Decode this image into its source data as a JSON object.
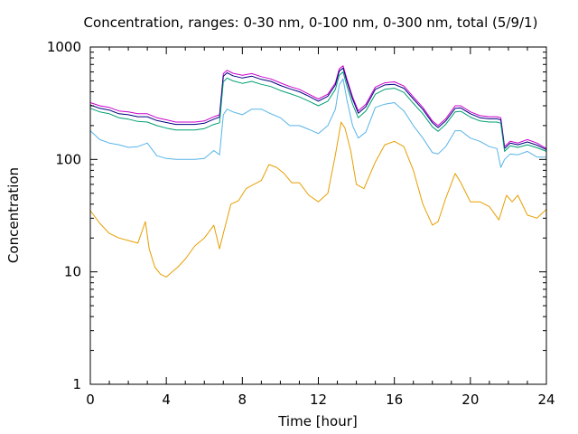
{
  "chart_data": {
    "type": "line",
    "title": "Concentration, ranges: 0-30 nm, 0-100 nm, 0-300 nm, total (5/9/1)",
    "xlabel": "Time [hour]",
    "ylabel": "Concentration",
    "xlim": [
      0,
      24
    ],
    "ylim": [
      1,
      1000
    ],
    "yscale": "log",
    "xticks": [
      0,
      4,
      8,
      12,
      16,
      20,
      24
    ],
    "xtick_labels": [
      "0",
      "4",
      "8",
      "12",
      "16",
      "20",
      "24"
    ],
    "yticks": [
      1,
      10,
      100,
      1000
    ],
    "ytick_labels": [
      "1",
      "10",
      "100",
      "1000"
    ],
    "grid": false,
    "legend": "none",
    "series": [
      {
        "color": "#cc00cc",
        "x": [
          0,
          0.5,
          1,
          1.5,
          2,
          2.5,
          3,
          3.5,
          4,
          4.5,
          5,
          5.5,
          6,
          6.5,
          6.8,
          7.0,
          7.2,
          7.5,
          8,
          8.5,
          9,
          9.5,
          10,
          10.5,
          11,
          11.5,
          12,
          12.5,
          12.9,
          13.1,
          13.3,
          13.5,
          13.8,
          14.1,
          14.5,
          15,
          15.5,
          16,
          16.5,
          17,
          17.5,
          18,
          18.3,
          18.7,
          19.2,
          19.5,
          20,
          20.5,
          21,
          21.4,
          21.6,
          21.8,
          22.1,
          22.5,
          23,
          23.5,
          24
        ],
        "y": [
          320,
          300,
          290,
          270,
          265,
          255,
          255,
          235,
          225,
          215,
          215,
          215,
          220,
          240,
          250,
          580,
          620,
          585,
          560,
          580,
          545,
          520,
          480,
          445,
          420,
          380,
          345,
          380,
          480,
          640,
          680,
          520,
          360,
          270,
          310,
          440,
          480,
          490,
          450,
          360,
          290,
          220,
          200,
          230,
          300,
          300,
          265,
          245,
          240,
          240,
          235,
          130,
          145,
          140,
          150,
          140,
          125
        ]
      },
      {
        "color": "#000080",
        "x": [
          0,
          0.5,
          1,
          1.5,
          2,
          2.5,
          3,
          3.5,
          4,
          4.5,
          5,
          5.5,
          6,
          6.5,
          6.8,
          7.0,
          7.2,
          7.5,
          8,
          8.5,
          9,
          9.5,
          10,
          10.5,
          11,
          11.5,
          12,
          12.5,
          12.9,
          13.1,
          13.3,
          13.5,
          13.8,
          14.1,
          14.5,
          15,
          15.5,
          16,
          16.5,
          17,
          17.5,
          18,
          18.3,
          18.7,
          19.2,
          19.5,
          20,
          20.5,
          21,
          21.4,
          21.6,
          21.8,
          22.1,
          22.5,
          23,
          23.5,
          24
        ],
        "y": [
          305,
          285,
          275,
          255,
          250,
          240,
          240,
          222,
          213,
          205,
          205,
          205,
          210,
          228,
          238,
          550,
          590,
          555,
          530,
          550,
          515,
          495,
          455,
          425,
          400,
          365,
          330,
          365,
          460,
          610,
          650,
          495,
          345,
          258,
          295,
          420,
          460,
          465,
          430,
          345,
          278,
          212,
          192,
          220,
          285,
          287,
          255,
          235,
          230,
          230,
          225,
          125,
          140,
          135,
          143,
          134,
          122
        ]
      },
      {
        "color": "#009e73",
        "x": [
          0,
          0.5,
          1,
          1.5,
          2,
          2.5,
          3,
          3.5,
          4,
          4.5,
          5,
          5.5,
          6,
          6.5,
          6.8,
          7.0,
          7.2,
          7.5,
          8,
          8.5,
          9,
          9.5,
          10,
          10.5,
          11,
          11.5,
          12,
          12.5,
          12.9,
          13.1,
          13.3,
          13.5,
          13.8,
          14.1,
          14.5,
          15,
          15.5,
          16,
          16.5,
          17,
          17.5,
          18,
          18.3,
          18.7,
          19.2,
          19.5,
          20,
          20.5,
          21,
          21.4,
          21.6,
          21.8,
          22.1,
          22.5,
          23,
          23.5,
          24
        ],
        "y": [
          285,
          265,
          255,
          235,
          228,
          218,
          215,
          200,
          190,
          183,
          183,
          183,
          188,
          205,
          212,
          490,
          530,
          500,
          475,
          495,
          465,
          445,
          410,
          385,
          360,
          330,
          300,
          330,
          420,
          560,
          600,
          450,
          310,
          235,
          270,
          380,
          420,
          430,
          395,
          315,
          255,
          195,
          178,
          205,
          265,
          268,
          238,
          220,
          215,
          215,
          210,
          118,
          132,
          128,
          135,
          127,
          118
        ]
      },
      {
        "color": "#56b4e9",
        "x": [
          0,
          0.5,
          1,
          1.5,
          2,
          2.5,
          3,
          3.5,
          4,
          4.5,
          5,
          5.5,
          6,
          6.5,
          6.8,
          7.0,
          7.2,
          7.5,
          8,
          8.5,
          9,
          9.5,
          10,
          10.5,
          11,
          11.5,
          12,
          12.5,
          12.9,
          13.1,
          13.3,
          13.5,
          13.8,
          14.1,
          14.5,
          15,
          15.5,
          16,
          16.5,
          17,
          17.5,
          18,
          18.3,
          18.7,
          19.2,
          19.5,
          20,
          20.5,
          21,
          21.4,
          21.6,
          21.8,
          22.1,
          22.5,
          23,
          23.5,
          24
        ],
        "y": [
          180,
          150,
          140,
          135,
          128,
          130,
          140,
          108,
          102,
          100,
          100,
          100,
          102,
          120,
          110,
          250,
          280,
          265,
          250,
          280,
          280,
          255,
          235,
          200,
          200,
          185,
          170,
          200,
          280,
          460,
          520,
          340,
          200,
          155,
          175,
          290,
          310,
          320,
          270,
          200,
          155,
          115,
          112,
          130,
          180,
          180,
          155,
          145,
          130,
          125,
          85,
          100,
          112,
          110,
          118,
          105,
          105
        ]
      },
      {
        "color": "#e69f00",
        "x": [
          0,
          0.5,
          1,
          1.5,
          2,
          2.5,
          2.9,
          3.1,
          3.4,
          3.7,
          4,
          4.3,
          4.6,
          5,
          5.5,
          6,
          6.5,
          6.8,
          7.0,
          7.4,
          7.8,
          8.2,
          8.6,
          9.0,
          9.4,
          9.8,
          10.2,
          10.6,
          11,
          11.5,
          12,
          12.5,
          12.9,
          13.2,
          13.4,
          13.7,
          14.0,
          14.4,
          15,
          15.5,
          16,
          16.5,
          17,
          17.5,
          18,
          18.3,
          18.7,
          19.2,
          19.5,
          20,
          20.5,
          21,
          21.5,
          21.9,
          22.2,
          22.5,
          23,
          23.5,
          24
        ],
        "y": [
          35,
          27,
          22,
          20,
          19,
          18,
          28,
          16,
          11,
          9.5,
          9,
          10,
          11,
          13,
          17,
          20,
          26,
          16,
          22,
          40,
          43,
          55,
          60,
          65,
          90,
          85,
          75,
          62,
          62,
          48,
          42,
          50,
          110,
          215,
          190,
          120,
          60,
          55,
          95,
          135,
          145,
          130,
          80,
          40,
          26,
          28,
          45,
          75,
          62,
          42,
          42,
          38,
          29,
          48,
          42,
          48,
          32,
          30,
          36
        ]
      }
    ]
  }
}
